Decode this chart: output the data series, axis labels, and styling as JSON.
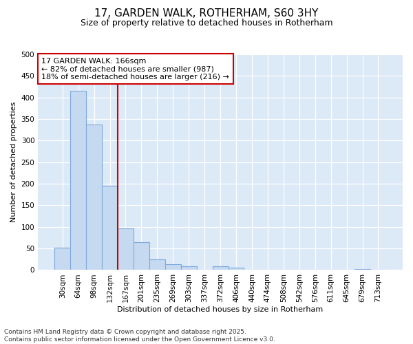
{
  "title_line1": "17, GARDEN WALK, ROTHERHAM, S60 3HY",
  "title_line2": "Size of property relative to detached houses in Rotherham",
  "xlabel": "Distribution of detached houses by size in Rotherham",
  "ylabel": "Number of detached properties",
  "categories": [
    "30sqm",
    "64sqm",
    "98sqm",
    "132sqm",
    "167sqm",
    "201sqm",
    "235sqm",
    "269sqm",
    "303sqm",
    "337sqm",
    "372sqm",
    "406sqm",
    "440sqm",
    "474sqm",
    "508sqm",
    "542sqm",
    "576sqm",
    "611sqm",
    "645sqm",
    "679sqm",
    "713sqm"
  ],
  "values": [
    52,
    415,
    338,
    196,
    97,
    64,
    24,
    13,
    9,
    0,
    9,
    5,
    0,
    0,
    0,
    0,
    0,
    0,
    0,
    3,
    0
  ],
  "bar_color": "#c5d9f0",
  "bar_edge_color": "#7faadc",
  "vline_color": "#cc0000",
  "annotation_text": "17 GARDEN WALK: 166sqm\n← 82% of detached houses are smaller (987)\n18% of semi-detached houses are larger (216) →",
  "annotation_box_color": "#cc0000",
  "ylim": [
    0,
    500
  ],
  "yticks": [
    0,
    50,
    100,
    150,
    200,
    250,
    300,
    350,
    400,
    450,
    500
  ],
  "footer_line1": "Contains HM Land Registry data © Crown copyright and database right 2025.",
  "footer_line2": "Contains public sector information licensed under the Open Government Licence v3.0.",
  "fig_bg_color": "#ffffff",
  "plot_bg_color": "#dce9f7",
  "grid_color": "#ffffff",
  "title1_fontsize": 11,
  "title2_fontsize": 9,
  "xlabel_fontsize": 8,
  "ylabel_fontsize": 8,
  "tick_fontsize": 7.5,
  "footer_fontsize": 6.5,
  "ann_fontsize": 8
}
